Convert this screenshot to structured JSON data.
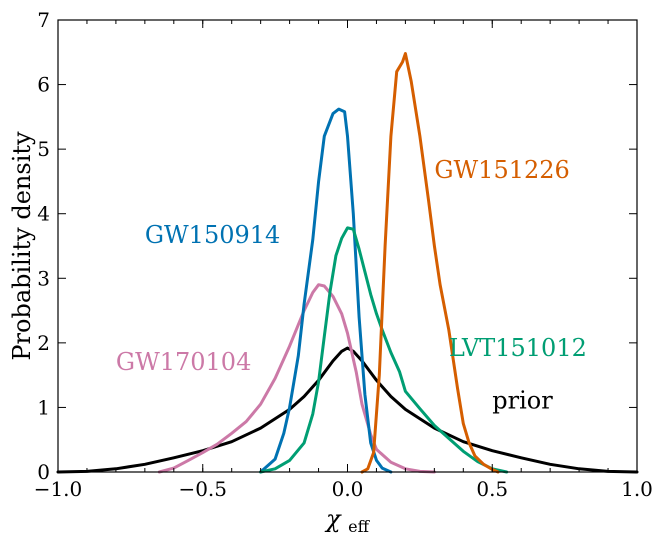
{
  "chart_data": {
    "type": "line",
    "xlabel_main": "χ",
    "xlabel_sub": "eff",
    "ylabel": "Probability density",
    "xlim": [
      -1.0,
      1.0
    ],
    "ylim": [
      0,
      7
    ],
    "xticks": [
      -1.0,
      -0.5,
      0.0,
      0.5,
      1.0
    ],
    "xtick_labels": [
      "−1.0",
      "−0.5",
      "0.0",
      "0.5",
      "1.0"
    ],
    "yticks": [
      0,
      1,
      2,
      3,
      4,
      5,
      6,
      7
    ],
    "ytick_labels": [
      "0",
      "1",
      "2",
      "3",
      "4",
      "5",
      "6",
      "7"
    ],
    "series": [
      {
        "name": "prior",
        "color": "#000000",
        "points": [
          [
            -1.0,
            0
          ],
          [
            -0.9,
            0.01
          ],
          [
            -0.8,
            0.05
          ],
          [
            -0.7,
            0.12
          ],
          [
            -0.6,
            0.22
          ],
          [
            -0.5,
            0.33
          ],
          [
            -0.4,
            0.47
          ],
          [
            -0.3,
            0.68
          ],
          [
            -0.2,
            0.97
          ],
          [
            -0.15,
            1.17
          ],
          [
            -0.1,
            1.42
          ],
          [
            -0.05,
            1.72
          ],
          [
            -0.02,
            1.87
          ],
          [
            0.0,
            1.92
          ],
          [
            0.02,
            1.87
          ],
          [
            0.05,
            1.72
          ],
          [
            0.1,
            1.42
          ],
          [
            0.15,
            1.17
          ],
          [
            0.2,
            0.97
          ],
          [
            0.3,
            0.68
          ],
          [
            0.4,
            0.47
          ],
          [
            0.5,
            0.33
          ],
          [
            0.6,
            0.22
          ],
          [
            0.7,
            0.12
          ],
          [
            0.8,
            0.05
          ],
          [
            0.9,
            0.01
          ],
          [
            1.0,
            0
          ]
        ]
      },
      {
        "name": "GW170104",
        "color": "#cc79a7",
        "points": [
          [
            -0.65,
            0
          ],
          [
            -0.6,
            0.06
          ],
          [
            -0.55,
            0.18
          ],
          [
            -0.5,
            0.3
          ],
          [
            -0.45,
            0.43
          ],
          [
            -0.4,
            0.6
          ],
          [
            -0.35,
            0.78
          ],
          [
            -0.3,
            1.05
          ],
          [
            -0.25,
            1.45
          ],
          [
            -0.2,
            1.95
          ],
          [
            -0.15,
            2.5
          ],
          [
            -0.12,
            2.78
          ],
          [
            -0.1,
            2.9
          ],
          [
            -0.08,
            2.88
          ],
          [
            -0.05,
            2.72
          ],
          [
            -0.02,
            2.45
          ],
          [
            0.0,
            2.15
          ],
          [
            0.03,
            1.55
          ],
          [
            0.05,
            1.05
          ],
          [
            0.08,
            0.58
          ],
          [
            0.1,
            0.35
          ],
          [
            0.15,
            0.15
          ],
          [
            0.2,
            0.05
          ],
          [
            0.25,
            0.01
          ],
          [
            0.3,
            0
          ]
        ]
      },
      {
        "name": "GW150914",
        "color": "#0072b2",
        "points": [
          [
            -0.3,
            0
          ],
          [
            -0.25,
            0.2
          ],
          [
            -0.22,
            0.6
          ],
          [
            -0.2,
            1.0
          ],
          [
            -0.17,
            1.8
          ],
          [
            -0.15,
            2.6
          ],
          [
            -0.12,
            3.6
          ],
          [
            -0.1,
            4.5
          ],
          [
            -0.08,
            5.2
          ],
          [
            -0.05,
            5.55
          ],
          [
            -0.03,
            5.62
          ],
          [
            -0.01,
            5.58
          ],
          [
            0.0,
            5.2
          ],
          [
            0.02,
            4.0
          ],
          [
            0.04,
            2.4
          ],
          [
            0.06,
            1.2
          ],
          [
            0.08,
            0.45
          ],
          [
            0.1,
            0.18
          ],
          [
            0.12,
            0.06
          ],
          [
            0.15,
            0
          ]
        ]
      },
      {
        "name": "LVT151012",
        "color": "#009e73",
        "points": [
          [
            -0.3,
            0
          ],
          [
            -0.25,
            0.05
          ],
          [
            -0.2,
            0.18
          ],
          [
            -0.15,
            0.45
          ],
          [
            -0.12,
            0.9
          ],
          [
            -0.1,
            1.4
          ],
          [
            -0.08,
            2.1
          ],
          [
            -0.06,
            2.8
          ],
          [
            -0.04,
            3.35
          ],
          [
            -0.02,
            3.62
          ],
          [
            0.0,
            3.78
          ],
          [
            0.02,
            3.76
          ],
          [
            0.04,
            3.45
          ],
          [
            0.06,
            3.1
          ],
          [
            0.08,
            2.75
          ],
          [
            0.1,
            2.45
          ],
          [
            0.12,
            2.2
          ],
          [
            0.15,
            1.85
          ],
          [
            0.18,
            1.55
          ],
          [
            0.2,
            1.25
          ],
          [
            0.25,
            0.98
          ],
          [
            0.3,
            0.72
          ],
          [
            0.35,
            0.52
          ],
          [
            0.4,
            0.32
          ],
          [
            0.45,
            0.16
          ],
          [
            0.5,
            0.05
          ],
          [
            0.55,
            0
          ]
        ]
      },
      {
        "name": "GW151226",
        "color": "#d55e00",
        "points": [
          [
            0.05,
            0
          ],
          [
            0.07,
            0.05
          ],
          [
            0.09,
            0.3
          ],
          [
            0.11,
            1.5
          ],
          [
            0.13,
            3.5
          ],
          [
            0.15,
            5.2
          ],
          [
            0.17,
            6.2
          ],
          [
            0.19,
            6.35
          ],
          [
            0.2,
            6.48
          ],
          [
            0.22,
            6.05
          ],
          [
            0.25,
            5.2
          ],
          [
            0.28,
            4.2
          ],
          [
            0.3,
            3.5
          ],
          [
            0.32,
            2.9
          ],
          [
            0.35,
            2.2
          ],
          [
            0.38,
            1.3
          ],
          [
            0.4,
            0.75
          ],
          [
            0.42,
            0.45
          ],
          [
            0.44,
            0.25
          ],
          [
            0.47,
            0.12
          ],
          [
            0.5,
            0.04
          ],
          [
            0.52,
            0
          ]
        ]
      }
    ],
    "annotations": [
      {
        "text": "GW151226",
        "color": "#d55e00",
        "x": 0.3,
        "y": 4.55
      },
      {
        "text": "GW150914",
        "color": "#0072b2",
        "x": -0.7,
        "y": 3.55
      },
      {
        "text": "LVT151012",
        "color": "#009e73",
        "x": 0.35,
        "y": 1.8
      },
      {
        "text": "GW170104",
        "color": "#cc79a7",
        "x": -0.8,
        "y": 1.58
      },
      {
        "text": "prior",
        "color": "#000000",
        "x": 0.5,
        "y": 0.98
      }
    ]
  }
}
